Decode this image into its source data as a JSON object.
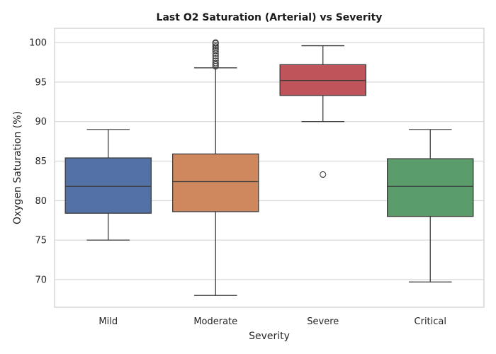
{
  "chart_data": {
    "type": "box",
    "title": "Last O2 Saturation (Arterial) vs Severity",
    "xlabel": "Severity",
    "ylabel": "Oxygen Saturation (%)",
    "ylim": [
      66.5,
      101.8
    ],
    "yticks": [
      70,
      75,
      80,
      85,
      90,
      95,
      100
    ],
    "grid": true,
    "categories": [
      "Mild",
      "Moderate",
      "Severe",
      "Critical"
    ],
    "colors": [
      "#5471a6",
      "#cf885d",
      "#bf545b",
      "#5b9c6b"
    ],
    "boxes": [
      {
        "category": "Mild",
        "whisker_low": 75.0,
        "q1": 78.4,
        "median": 81.8,
        "q3": 85.4,
        "whisker_high": 89.0,
        "outliers": []
      },
      {
        "category": "Moderate",
        "whisker_low": 68.0,
        "q1": 78.6,
        "median": 82.4,
        "q3": 85.9,
        "whisker_high": 96.8,
        "outliers": [
          97.0,
          97.2,
          97.4,
          97.7,
          98.0,
          98.3,
          98.6,
          98.9,
          99.1,
          99.3,
          99.5,
          99.7,
          99.9,
          100.0
        ]
      },
      {
        "category": "Severe",
        "whisker_low": 90.0,
        "q1": 93.3,
        "median": 95.2,
        "q3": 97.2,
        "whisker_high": 99.6,
        "outliers": [
          83.3
        ]
      },
      {
        "category": "Critical",
        "whisker_low": 69.7,
        "q1": 78.0,
        "median": 81.8,
        "q3": 85.3,
        "whisker_high": 89.0,
        "outliers": []
      }
    ]
  }
}
